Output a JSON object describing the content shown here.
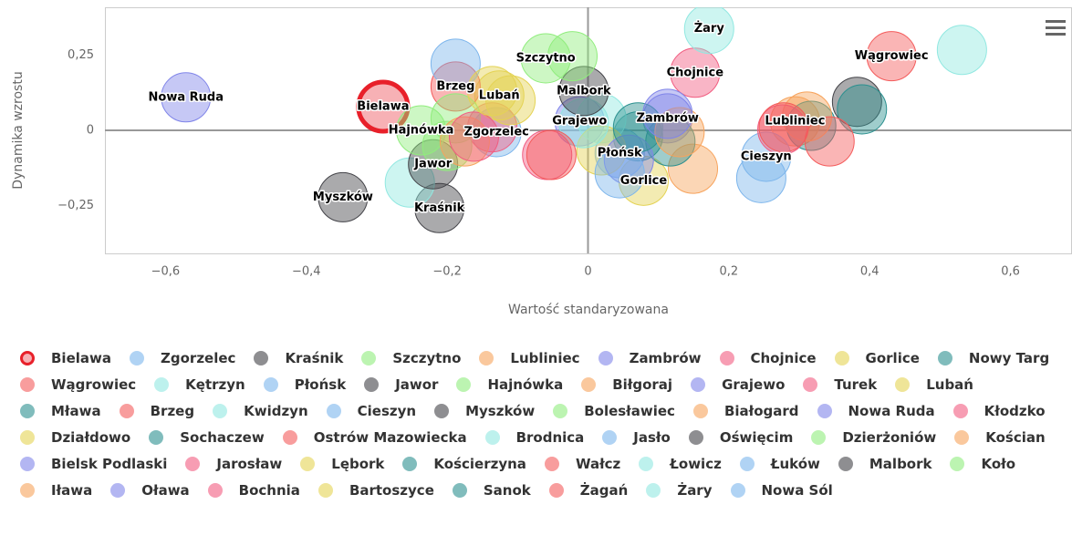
{
  "chart_data": {
    "type": "scatter",
    "x_label": "Wartość standaryzowana",
    "y_label": "Dynamika wzrostu",
    "xlim": [
      -0.686,
      0.686
    ],
    "ylim": [
      -0.41,
      0.41
    ],
    "xticks": [
      {
        "value": -0.6,
        "label": "−0,6"
      },
      {
        "value": -0.4,
        "label": "−0,4"
      },
      {
        "value": -0.2,
        "label": "−0,2"
      },
      0,
      {
        "value": 0.2,
        "label": "0,2"
      },
      {
        "value": 0.4,
        "label": "0,4"
      },
      {
        "value": 0.6,
        "label": "0,6"
      }
    ],
    "yticks": [
      {
        "value": -0.25,
        "label": "−0,25"
      },
      0,
      {
        "value": 0.25,
        "label": "0,25"
      }
    ],
    "zero_lines": true,
    "series": [
      {
        "name": "Bielawa",
        "color": "#e8202a",
        "x": [
          -0.291
        ],
        "values": [
          0.079
        ],
        "label": "Bielawa"
      },
      {
        "name": "Zgorzelec",
        "color": "#7cb5ec",
        "x": [
          -0.13
        ],
        "values": [
          -0.006
        ],
        "label": "Zgorzelec"
      },
      {
        "name": "Kraśnik",
        "color": "#434348",
        "x": [
          -0.211
        ],
        "values": [
          -0.259
        ],
        "label": "Kraśnik"
      },
      {
        "name": "Szczytno",
        "color": "#90ed7d",
        "x": [
          -0.06
        ],
        "values": [
          0.24
        ],
        "label": "Szczytno"
      },
      {
        "name": "Lubliniec",
        "color": "#f7a35c",
        "x": [
          0.294
        ],
        "values": [
          0.03
        ],
        "label": "Lubliniec"
      },
      {
        "name": "Zambrów",
        "color": "#8085e9",
        "x": [
          0.113
        ],
        "values": [
          0.04
        ],
        "label": "Zambrów"
      },
      {
        "name": "Chojnice",
        "color": "#f15c80",
        "x": [
          0.152
        ],
        "values": [
          0.192
        ],
        "label": "Chojnice"
      },
      {
        "name": "Gorlice",
        "color": "#e4d354",
        "x": [
          0.079
        ],
        "values": [
          -0.168
        ],
        "label": "Gorlice"
      },
      {
        "name": "Nowy Targ",
        "color": "#2b908f",
        "x": [
          0.317
        ],
        "values": [
          0.015
        ]
      },
      {
        "name": "Wągrowiec",
        "color": "#f45b5b",
        "x": [
          0.431
        ],
        "values": [
          0.247
        ],
        "label": "Wągrowiec"
      },
      {
        "name": "Kętrzyn",
        "color": "#91e8e1",
        "x": [
          -0.253
        ],
        "values": [
          -0.174
        ]
      },
      {
        "name": "Płońsk",
        "color": "#7cb5ec",
        "x": [
          0.045
        ],
        "values": [
          -0.076
        ],
        "label": "Płońsk"
      },
      {
        "name": "Jawor",
        "color": "#434348",
        "x": [
          -0.22
        ],
        "values": [
          -0.113
        ],
        "label": "Jawor"
      },
      {
        "name": "Hajnówka",
        "color": "#90ed7d",
        "x": [
          -0.237
        ],
        "values": [
          0
        ],
        "label": "Hajnówka"
      },
      {
        "name": "Biłgoraj",
        "color": "#f7a35c",
        "x": [
          0.311
        ],
        "values": [
          0.046
        ]
      },
      {
        "name": "Grajewo",
        "color": "#8085e9",
        "x": [
          -0.012
        ],
        "values": [
          0.03
        ],
        "label": "Grajewo"
      },
      {
        "name": "Turek",
        "color": "#f15c80",
        "x": [
          -0.136
        ],
        "values": [
          0.01
        ]
      },
      {
        "name": "Lubań",
        "color": "#e4d354",
        "x": [
          -0.126
        ],
        "values": [
          0.116
        ],
        "label": "Lubań"
      },
      {
        "name": "Mława",
        "color": "#2b908f",
        "x": [
          0.071
        ],
        "values": [
          -0.02
        ]
      },
      {
        "name": "Brzeg",
        "color": "#f45b5b",
        "x": [
          -0.188
        ],
        "values": [
          0.146
        ],
        "label": "Brzeg"
      },
      {
        "name": "Kwidzyn",
        "color": "#91e8e1",
        "x": [
          0.019
        ],
        "values": [
          0.04
        ]
      },
      {
        "name": "Cieszyn",
        "color": "#7cb5ec",
        "x": [
          0.253
        ],
        "values": [
          -0.088
        ],
        "label": "Cieszyn"
      },
      {
        "name": "Myszków",
        "color": "#434348",
        "x": [
          -0.348
        ],
        "values": [
          -0.223
        ],
        "label": "Myszków"
      },
      {
        "name": "Bolesławiec",
        "color": "#90ed7d",
        "x": [
          -0.2
        ],
        "values": [
          -0.052
        ]
      },
      {
        "name": "Białogard",
        "color": "#f7a35c",
        "x": [
          0.149
        ],
        "values": [
          -0.128
        ]
      },
      {
        "name": "Nowa Ruda",
        "color": "#8085e9",
        "x": [
          -0.571
        ],
        "values": [
          0.11
        ],
        "label": "Nowa Ruda"
      },
      {
        "name": "Kłodzko",
        "color": "#f15c80",
        "x": [
          0.276
        ],
        "values": [
          0.003
        ]
      },
      {
        "name": "Działdowo",
        "color": "#e4d354",
        "x": [
          0.019
        ],
        "values": [
          -0.067
        ]
      },
      {
        "name": "Sochaczew",
        "color": "#2b908f",
        "x": [
          0.117
        ],
        "values": [
          -0.037
        ]
      },
      {
        "name": "Ostrów Mazowiecka",
        "color": "#f45b5b",
        "x": [
          0.278
        ],
        "values": [
          0.01
        ]
      },
      {
        "name": "Brodnica",
        "color": "#91e8e1",
        "x": [
          -0.006
        ],
        "values": [
          0.024
        ]
      },
      {
        "name": "Jasło",
        "color": "#7cb5ec",
        "x": [
          -0.188
        ],
        "values": [
          0.222
        ]
      },
      {
        "name": "Oświęcim",
        "color": "#434348",
        "x": [
          0.382
        ],
        "values": [
          0.095
        ]
      },
      {
        "name": "Dzierżoniów",
        "color": "#90ed7d",
        "x": [
          -0.188
        ],
        "values": [
          0.04
        ]
      },
      {
        "name": "Kościan",
        "color": "#f7a35c",
        "x": [
          -0.175
        ],
        "values": [
          -0.037
        ]
      },
      {
        "name": "Bielsk Podlaski",
        "color": "#8085e9",
        "x": [
          0.058
        ],
        "values": [
          -0.098
        ]
      },
      {
        "name": "Jarosław",
        "color": "#f15c80",
        "x": [
          -0.058
        ],
        "values": [
          -0.082
        ]
      },
      {
        "name": "Lębork",
        "color": "#e4d354",
        "x": [
          -0.11
        ],
        "values": [
          0.1
        ]
      },
      {
        "name": "Kościerzyna",
        "color": "#2b908f",
        "x": [
          0.071
        ],
        "values": [
          0.01
        ]
      },
      {
        "name": "Wałcz",
        "color": "#f45b5b",
        "x": [
          -0.052
        ],
        "values": [
          -0.082
        ]
      },
      {
        "name": "Łowicz",
        "color": "#91e8e1",
        "x": [
          0.531
        ],
        "values": [
          0.268
        ]
      },
      {
        "name": "Łuków",
        "color": "#7cb5ec",
        "x": [
          0.246
        ],
        "values": [
          -0.159
        ]
      },
      {
        "name": "Malbork",
        "color": "#434348",
        "x": [
          -0.006
        ],
        "values": [
          0.131
        ],
        "label": "Malbork"
      },
      {
        "name": "Koło",
        "color": "#90ed7d",
        "x": [
          -0.022
        ],
        "values": [
          0.247
        ]
      },
      {
        "name": "Iława",
        "color": "#f7a35c",
        "x": [
          0.13
        ],
        "values": [
          -0.006
        ]
      },
      {
        "name": "Oława",
        "color": "#8085e9",
        "x": [
          0.113
        ],
        "values": [
          0.055
        ]
      },
      {
        "name": "Bochnia",
        "color": "#f15c80",
        "x": [
          -0.162
        ],
        "values": [
          -0.021
        ]
      },
      {
        "name": "Bartoszyce",
        "color": "#e4d354",
        "x": [
          -0.136
        ],
        "values": [
          0.131
        ]
      },
      {
        "name": "Sanok",
        "color": "#2b908f",
        "x": [
          0.389
        ],
        "values": [
          0.07
        ]
      },
      {
        "name": "Żagań",
        "color": "#f45b5b",
        "x": [
          0.343
        ],
        "values": [
          -0.037
        ]
      },
      {
        "name": "Żary",
        "color": "#91e8e1",
        "x": [
          0.172
        ],
        "values": [
          0.338
        ],
        "label": "Żary"
      },
      {
        "name": "Nowa Sól",
        "color": "#7cb5ec",
        "x": [
          0.045
        ],
        "values": [
          -0.143
        ]
      }
    ]
  }
}
